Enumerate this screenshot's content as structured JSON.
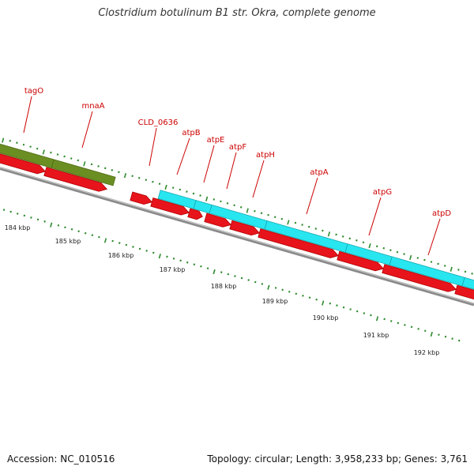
{
  "title": "Clostridium botulinum B1 str. Okra, complete genome",
  "footer": {
    "accession": "Accession: NC_010516",
    "summary": "Topology: circular; Length: 3,958,233 bp; Genes: 3,761"
  },
  "colors": {
    "gene_label": "#cc0000",
    "red_feature": "#e8141c",
    "cyan_feature": "#28e6f0",
    "green_feature": "#6b8e23",
    "tick": "#2d8a2d",
    "backbone": "#8a8a8a"
  },
  "scale_labels": [
    "184 kbp",
    "185 kbp",
    "186 kbp",
    "187 kbp",
    "188 kbp",
    "189 kbp",
    "190 kbp",
    "191 kbp",
    "192 kbp"
  ],
  "gene_labels": [
    "tagO",
    "mnaA",
    "CLD_0636",
    "atpB",
    "atpE",
    "atpF",
    "atpH",
    "atpA",
    "atpG",
    "atpD"
  ]
}
